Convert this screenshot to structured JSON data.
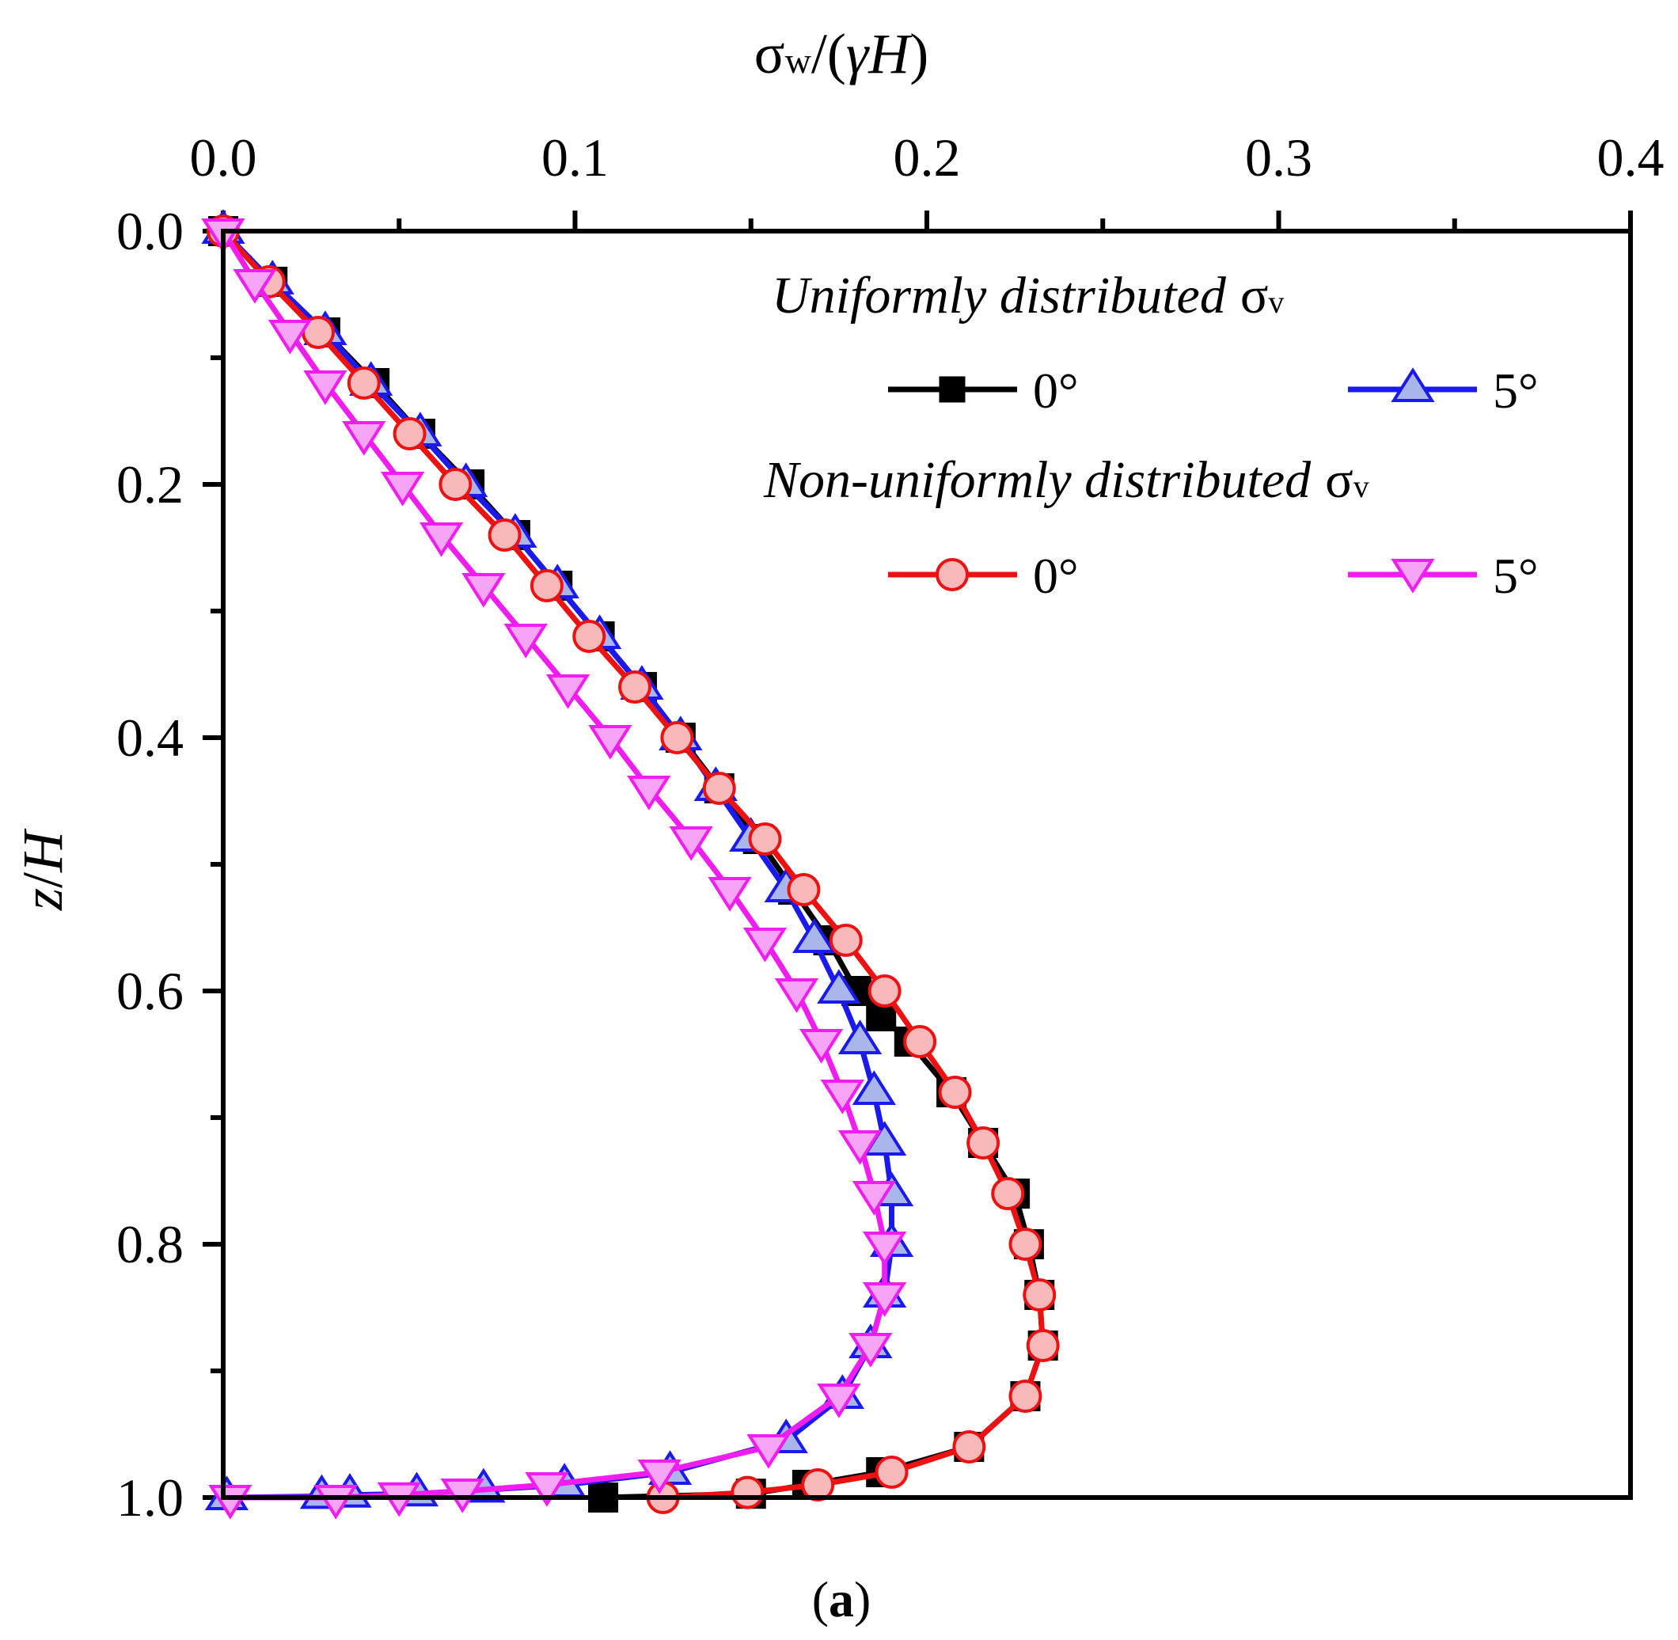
{
  "chart_data": {
    "type": "line",
    "panel_label_parts": {
      "open": "(",
      "letter": "a",
      "close": ")"
    },
    "top_axis": {
      "label_parts": {
        "sigma": "σ",
        "sub": "w",
        "mid": "/(",
        "gamma": "γ",
        "h": "H",
        "close": ")"
      },
      "range": [
        0.0,
        0.4
      ],
      "ticks": [
        "0.0",
        "0.1",
        "0.2",
        "0.3",
        "0.4"
      ],
      "minor_step": 0.05
    },
    "left_axis": {
      "label_parts": {
        "z": "z",
        "slash": "/",
        "h": "H"
      },
      "range": [
        0.0,
        1.0
      ],
      "inverted": true,
      "ticks": [
        "0.0",
        "0.2",
        "0.4",
        "0.6",
        "0.8",
        "1.0"
      ],
      "minor_step": 0.1
    },
    "legend": {
      "placement": "top-right",
      "groups": [
        {
          "header": "Uniformly distributed",
          "sigma": "σ",
          "sub": "v",
          "entries": [
            {
              "series": "uniform-0",
              "label": "0°"
            },
            {
              "series": "uniform-5",
              "label": "5°"
            }
          ]
        },
        {
          "header": "Non-uniformly distributed",
          "sigma": "σ",
          "sub": "v",
          "entries": [
            {
              "series": "nonuniform-0",
              "label": "0°"
            },
            {
              "series": "nonuniform-5",
              "label": "5°"
            }
          ]
        }
      ]
    },
    "series": [
      {
        "id": "uniform-0",
        "name": "Uniformly distributed σv 0°",
        "color": "#000000",
        "marker": "square",
        "marker_fill": "#000000",
        "marker_stroke": "#000000",
        "x": [
          0.0,
          0.014,
          0.029,
          0.043,
          0.056,
          0.07,
          0.083,
          0.095,
          0.107,
          0.119,
          0.13,
          0.141,
          0.152,
          0.162,
          0.172,
          0.18,
          0.187,
          0.195,
          0.207,
          0.216,
          0.225,
          0.229,
          0.232,
          0.233,
          0.228,
          0.212,
          0.187,
          0.166,
          0.15,
          0.108
        ],
        "y": [
          0.0,
          0.04,
          0.08,
          0.12,
          0.16,
          0.2,
          0.24,
          0.28,
          0.32,
          0.36,
          0.4,
          0.44,
          0.48,
          0.52,
          0.56,
          0.6,
          0.62,
          0.64,
          0.68,
          0.72,
          0.76,
          0.8,
          0.84,
          0.88,
          0.92,
          0.96,
          0.98,
          0.99,
          0.997,
          1.0
        ]
      },
      {
        "id": "uniform-5",
        "name": "Uniformly distributed σv 5°",
        "color": "#1a1aee",
        "marker": "triangle-up",
        "marker_fill": "#a8b6ea",
        "marker_stroke": "#1a1aee",
        "x": [
          0.0,
          0.014,
          0.029,
          0.042,
          0.056,
          0.069,
          0.083,
          0.095,
          0.107,
          0.119,
          0.13,
          0.14,
          0.15,
          0.16,
          0.168,
          0.175,
          0.181,
          0.185,
          0.188,
          0.19,
          0.19,
          0.188,
          0.184,
          0.176,
          0.16,
          0.127,
          0.097,
          0.074,
          0.055,
          0.036,
          0.028,
          0.001
        ],
        "y": [
          0.0,
          0.04,
          0.08,
          0.12,
          0.16,
          0.2,
          0.24,
          0.28,
          0.32,
          0.36,
          0.4,
          0.44,
          0.48,
          0.52,
          0.56,
          0.6,
          0.64,
          0.68,
          0.72,
          0.76,
          0.8,
          0.84,
          0.88,
          0.92,
          0.955,
          0.98,
          0.99,
          0.994,
          0.997,
          0.998,
          0.999,
          1.0
        ]
      },
      {
        "id": "nonuniform-0",
        "name": "Non-uniformly distributed σv 0°",
        "color": "#ee1111",
        "marker": "circle",
        "marker_fill": "#f6b8b8",
        "marker_stroke": "#ee1111",
        "x": [
          0.0,
          0.013,
          0.027,
          0.04,
          0.053,
          0.066,
          0.08,
          0.092,
          0.104,
          0.117,
          0.129,
          0.141,
          0.154,
          0.165,
          0.177,
          0.188,
          0.198,
          0.208,
          0.216,
          0.223,
          0.228,
          0.232,
          0.233,
          0.228,
          0.212,
          0.19,
          0.169,
          0.149,
          0.125
        ],
        "y": [
          0.0,
          0.04,
          0.08,
          0.12,
          0.16,
          0.2,
          0.24,
          0.28,
          0.32,
          0.36,
          0.4,
          0.44,
          0.48,
          0.52,
          0.56,
          0.6,
          0.64,
          0.68,
          0.72,
          0.76,
          0.8,
          0.84,
          0.88,
          0.92,
          0.96,
          0.98,
          0.99,
          0.996,
          1.0
        ]
      },
      {
        "id": "nonuniform-5",
        "name": "Non-uniformly distributed σv 5°",
        "color": "#f01cf0",
        "marker": "triangle-down",
        "marker_fill": "#f6a4f6",
        "marker_stroke": "#f01cf0",
        "x": [
          0.0,
          0.009,
          0.019,
          0.029,
          0.04,
          0.051,
          0.062,
          0.074,
          0.086,
          0.098,
          0.11,
          0.121,
          0.133,
          0.144,
          0.154,
          0.163,
          0.17,
          0.176,
          0.181,
          0.185,
          0.188,
          0.188,
          0.184,
          0.175,
          0.155,
          0.124,
          0.092,
          0.068,
          0.05,
          0.032,
          0.002
        ],
        "y": [
          0.0,
          0.04,
          0.08,
          0.12,
          0.16,
          0.2,
          0.24,
          0.28,
          0.32,
          0.36,
          0.4,
          0.44,
          0.48,
          0.52,
          0.56,
          0.6,
          0.64,
          0.68,
          0.72,
          0.76,
          0.8,
          0.84,
          0.88,
          0.92,
          0.96,
          0.98,
          0.99,
          0.995,
          0.998,
          1.0,
          1.0
        ]
      }
    ]
  }
}
